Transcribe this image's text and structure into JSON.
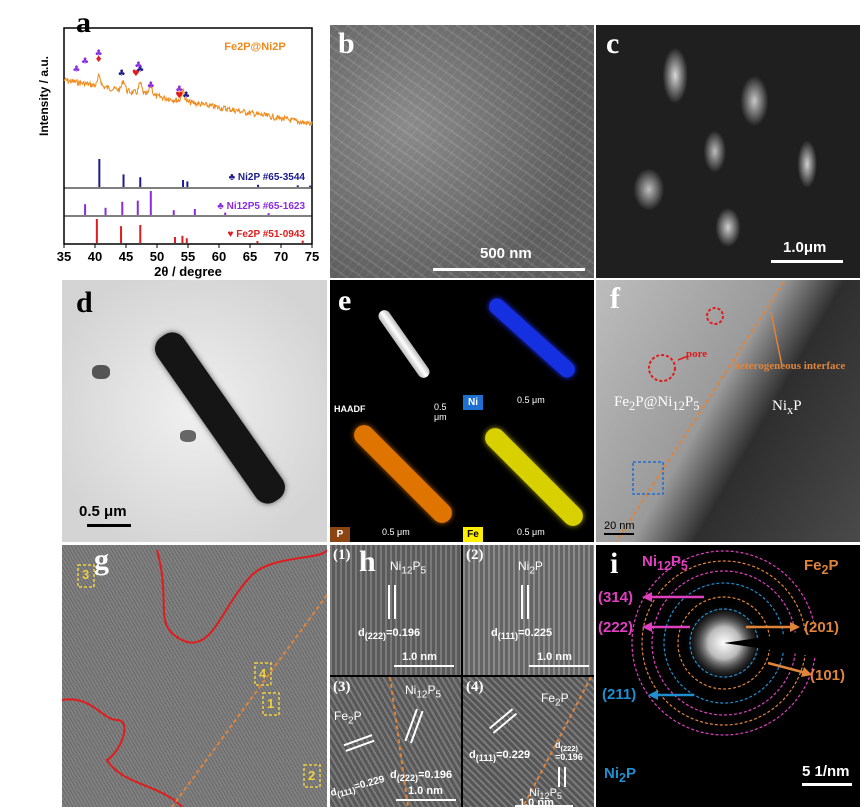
{
  "panels": {
    "a": {
      "label": "a",
      "legend_top": {
        "text": "Fe2P@Ni2P",
        "color": "#ef8a1c"
      },
      "refs": [
        {
          "label": "Ni2P #65-3544",
          "color": "#1c1c8c",
          "marker": "club"
        },
        {
          "label": "Ni12P5 #65-1623",
          "color": "#8a2be2",
          "marker": "club"
        },
        {
          "label": "Fe2P #51-0943",
          "color": "#e01c1c",
          "marker": "heart"
        }
      ]
    },
    "b": {
      "label": "b",
      "scalebar": "500 nm"
    },
    "c": {
      "label": "c",
      "scalebar": "1.0μm"
    },
    "d": {
      "label": "d",
      "scalebar": "0.5 μm"
    },
    "e": {
      "label": "e",
      "maps": [
        {
          "tag": "HAADF",
          "color": "#ffffff",
          "scale": "0.5 μm"
        },
        {
          "tag": "Ni",
          "color": "#1f6fd0",
          "scale": "0.5 μm"
        },
        {
          "tag": "P",
          "color": "#8b4513",
          "scale": "0.5 μm"
        },
        {
          "tag": "Fe",
          "color": "#ffee00",
          "scale": "0.5 μm"
        }
      ]
    },
    "f": {
      "label": "f",
      "pore": "pore",
      "interface": "heterogeneous interface",
      "left_text": "Fe2P@Ni12P5",
      "right_text": "NixP",
      "scalebar": "20 nm"
    },
    "g": {
      "label": "g",
      "boxes": [
        "3",
        "4",
        "1",
        "2"
      ]
    },
    "h": {
      "label": "h",
      "sub": [
        {
          "num": "(1)",
          "phase": "Ni12P5",
          "d": "d(222)=0.196",
          "scale": "1.0 nm"
        },
        {
          "num": "(2)",
          "phase": "Ni2P",
          "d": "d(111)=0.225",
          "scale": "1.0 nm"
        },
        {
          "num": "(3)",
          "phase": "Ni12P5",
          "phase2": "Fe2P",
          "d": "d(222)=0.196",
          "d2": "d(111)=0.229",
          "scale": "1.0 nm"
        },
        {
          "num": "(4)",
          "phase": "Fe2P",
          "phase2": "Ni12P5",
          "d": "d(111)=0.229",
          "d2": "d(222)=0.196",
          "scale": "1.0 nm"
        }
      ]
    },
    "i": {
      "label": "i",
      "top_left": "Ni12P5",
      "top_right": "Fe2P",
      "bottom_left": "Ni2P",
      "rings": [
        "(314)",
        "(222)",
        "(201)",
        "(101)",
        "(211)"
      ],
      "scalebar": "5 1/nm"
    }
  },
  "chart_data": {
    "type": "line",
    "title": "",
    "xlabel": "2θ / degree",
    "ylabel": "Intensity / a.u.",
    "xlim": [
      35,
      75
    ],
    "xticks": [
      35,
      40,
      45,
      50,
      55,
      60,
      65,
      70,
      75
    ],
    "series": [
      {
        "name": "Fe2P@Ni2P",
        "color": "#ef8a1c"
      }
    ],
    "ref_sticks": [
      {
        "name": "Ni2P #65-3544",
        "color": "#1c1c8c",
        "x": [
          40.7,
          44.6,
          47.3,
          54.2,
          54.9,
          66.3,
          72.7,
          74.7
        ],
        "h": [
          1.0,
          0.45,
          0.35,
          0.25,
          0.2,
          0.08,
          0.06,
          0.05
        ]
      },
      {
        "name": "Ni12P5 #65-1623",
        "color": "#8a2be2",
        "x": [
          38.4,
          41.7,
          44.4,
          46.9,
          49.0,
          52.7,
          56.1,
          61.0,
          68.0
        ],
        "h": [
          0.45,
          0.3,
          0.55,
          0.6,
          1.0,
          0.2,
          0.25,
          0.1,
          0.08
        ]
      },
      {
        "name": "Fe2P #51-0943",
        "color": "#e01c1c",
        "x": [
          40.3,
          44.2,
          47.3,
          52.9,
          54.1,
          54.8,
          66.2,
          73.5
        ],
        "h": [
          1.0,
          0.7,
          0.75,
          0.25,
          0.3,
          0.2,
          0.08,
          0.1
        ]
      }
    ]
  }
}
